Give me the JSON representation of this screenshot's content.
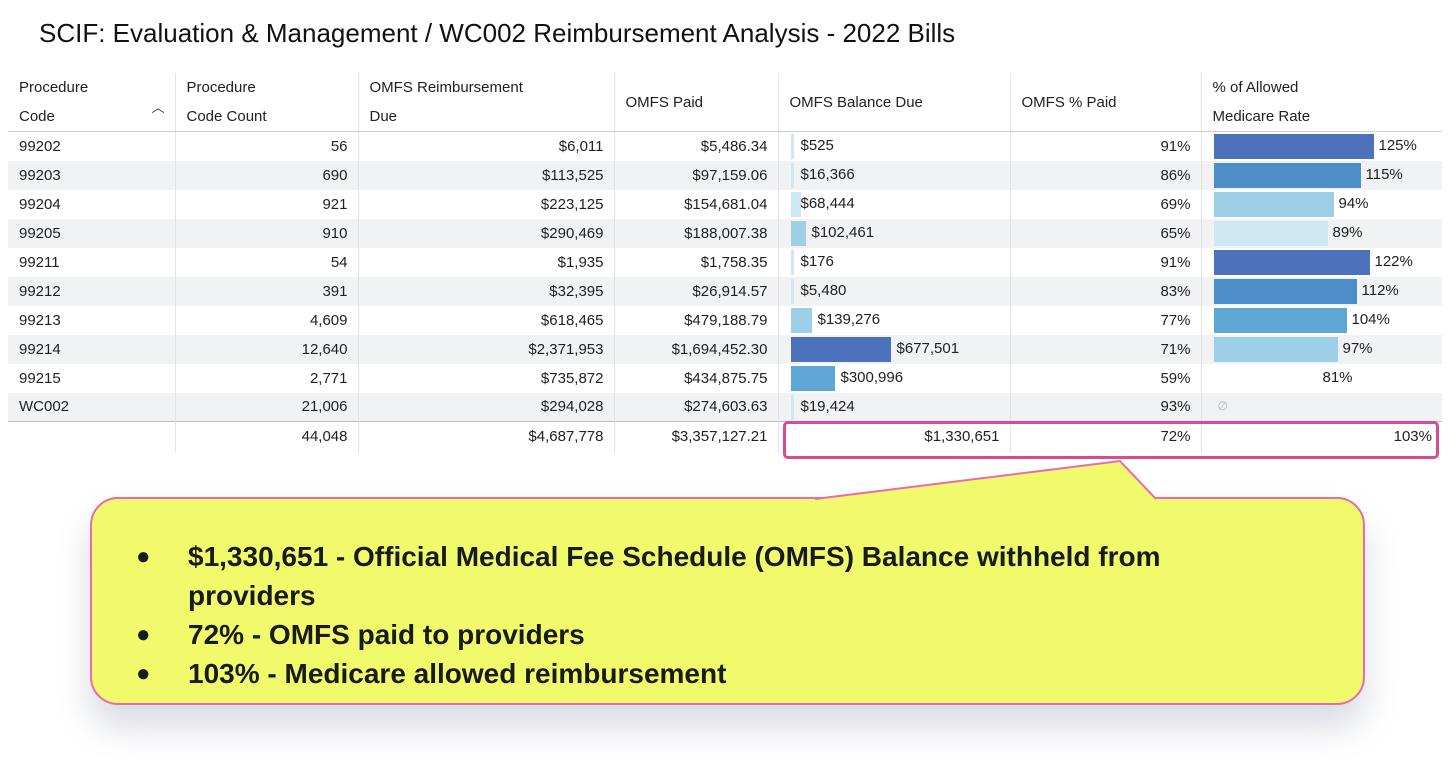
{
  "title": "SCIF: Evaluation & Management / WC002 Reimbursement Analysis - 2022 Bills",
  "table": {
    "headers": [
      {
        "line1": "Procedure",
        "line2": "Code"
      },
      {
        "line1": "Procedure",
        "line2": "Code Count"
      },
      {
        "line1": "OMFS Reimbursement",
        "line2": "Due"
      },
      {
        "line1": "OMFS Paid",
        "line2": ""
      },
      {
        "line1": "OMFS Balance Due",
        "line2": ""
      },
      {
        "line1": "OMFS % Paid",
        "line2": ""
      },
      {
        "line1": "% of Allowed",
        "line2": "Medicare Rate"
      }
    ],
    "rows": [
      {
        "code": "99202",
        "count": "56",
        "due": "$6,011",
        "paid": "$5,486.34",
        "balance": "$525",
        "balance_value": 525,
        "pct_paid": "91%",
        "medicare": "125%",
        "medicare_value": 125
      },
      {
        "code": "99203",
        "count": "690",
        "due": "$113,525",
        "paid": "$97,159.06",
        "balance": "$16,366",
        "balance_value": 16366,
        "pct_paid": "86%",
        "medicare": "115%",
        "medicare_value": 115
      },
      {
        "code": "99204",
        "count": "921",
        "due": "$223,125",
        "paid": "$154,681.04",
        "balance": "$68,444",
        "balance_value": 68444,
        "pct_paid": "69%",
        "medicare": "94%",
        "medicare_value": 94
      },
      {
        "code": "99205",
        "count": "910",
        "due": "$290,469",
        "paid": "$188,007.38",
        "balance": "$102,461",
        "balance_value": 102461,
        "pct_paid": "65%",
        "medicare": "89%",
        "medicare_value": 89
      },
      {
        "code": "99211",
        "count": "54",
        "due": "$1,935",
        "paid": "$1,758.35",
        "balance": "$176",
        "balance_value": 176,
        "pct_paid": "91%",
        "medicare": "122%",
        "medicare_value": 122
      },
      {
        "code": "99212",
        "count": "391",
        "due": "$32,395",
        "paid": "$26,914.57",
        "balance": "$5,480",
        "balance_value": 5480,
        "pct_paid": "83%",
        "medicare": "112%",
        "medicare_value": 112
      },
      {
        "code": "99213",
        "count": "4,609",
        "due": "$618,465",
        "paid": "$479,188.79",
        "balance": "$139,276",
        "balance_value": 139276,
        "pct_paid": "77%",
        "medicare": "104%",
        "medicare_value": 104
      },
      {
        "code": "99214",
        "count": "12,640",
        "due": "$2,371,953",
        "paid": "$1,694,452.30",
        "balance": "$677,501",
        "balance_value": 677501,
        "pct_paid": "71%",
        "medicare": "97%",
        "medicare_value": 97
      },
      {
        "code": "99215",
        "count": "2,771",
        "due": "$735,872",
        "paid": "$434,875.75",
        "balance": "$300,996",
        "balance_value": 300996,
        "pct_paid": "59%",
        "medicare": "81%",
        "medicare_value": 81
      },
      {
        "code": "WC002",
        "count": "21,006",
        "due": "$294,028",
        "paid": "$274,603.63",
        "balance": "$19,424",
        "balance_value": 19424,
        "pct_paid": "93%",
        "medicare": "∅",
        "medicare_value": null
      }
    ],
    "totals": {
      "code": "",
      "count": "44,048",
      "due": "$4,687,778",
      "paid": "$3,357,127.21",
      "balance": "$1,330,651",
      "pct_paid": "72%",
      "medicare": "103%"
    },
    "balance_max": 677501,
    "medicare_max": 125
  },
  "callout": {
    "items": [
      "$1,330,651 - Official Medical Fee Schedule (OMFS) Balance withheld from providers",
      "72% - OMFS paid to providers",
      "103% - Medicare allowed reimbursement"
    ],
    "bullet": "●"
  },
  "colors": {
    "bar_dark": "#4c72bb",
    "bar_mid": "#4e8ec8",
    "bar_light": "#5ea7d5",
    "bar_pale": "#9dd0e6",
    "bar_faint": "#cde8f3",
    "highlight": "#d84b94",
    "callout_bg": "#f0fa6a"
  }
}
